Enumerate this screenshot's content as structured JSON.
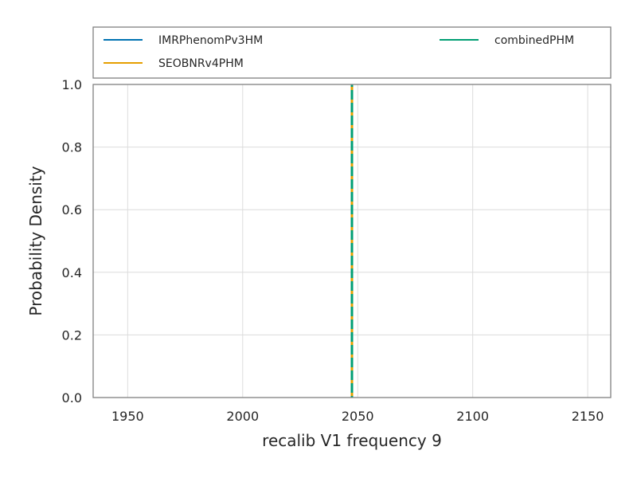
{
  "chart_data": {
    "type": "line",
    "xlabel": "recalib V1 frequency 9",
    "ylabel": "Probability Density",
    "xlim": [
      1935,
      2160
    ],
    "ylim": [
      0.0,
      1.0
    ],
    "x_ticks": [
      1950,
      2000,
      2050,
      2100,
      2150
    ],
    "x_tick_labels": [
      "1950",
      "2000",
      "2050",
      "2100",
      "2150"
    ],
    "y_ticks": [
      0.0,
      0.2,
      0.4,
      0.6,
      0.8,
      1.0
    ],
    "y_tick_labels": [
      "0.0",
      "0.2",
      "0.4",
      "0.6",
      "0.8",
      "1.0"
    ],
    "grid": true,
    "legend_position": "top, above plot",
    "series": [
      {
        "name": "IMRPhenomPv3HM",
        "color": "#0072b2",
        "x": [
          2047.5,
          2047.5
        ],
        "y": [
          0.0,
          1.0
        ]
      },
      {
        "name": "SEOBNRv4PHM",
        "color": "#e69f00",
        "x": [
          2047.5,
          2047.5
        ],
        "y": [
          0.0,
          1.0
        ]
      },
      {
        "name": "combinedPHM",
        "color": "#009e73",
        "x": [
          2047.5,
          2047.5
        ],
        "y": [
          0.0,
          1.0
        ]
      }
    ]
  }
}
